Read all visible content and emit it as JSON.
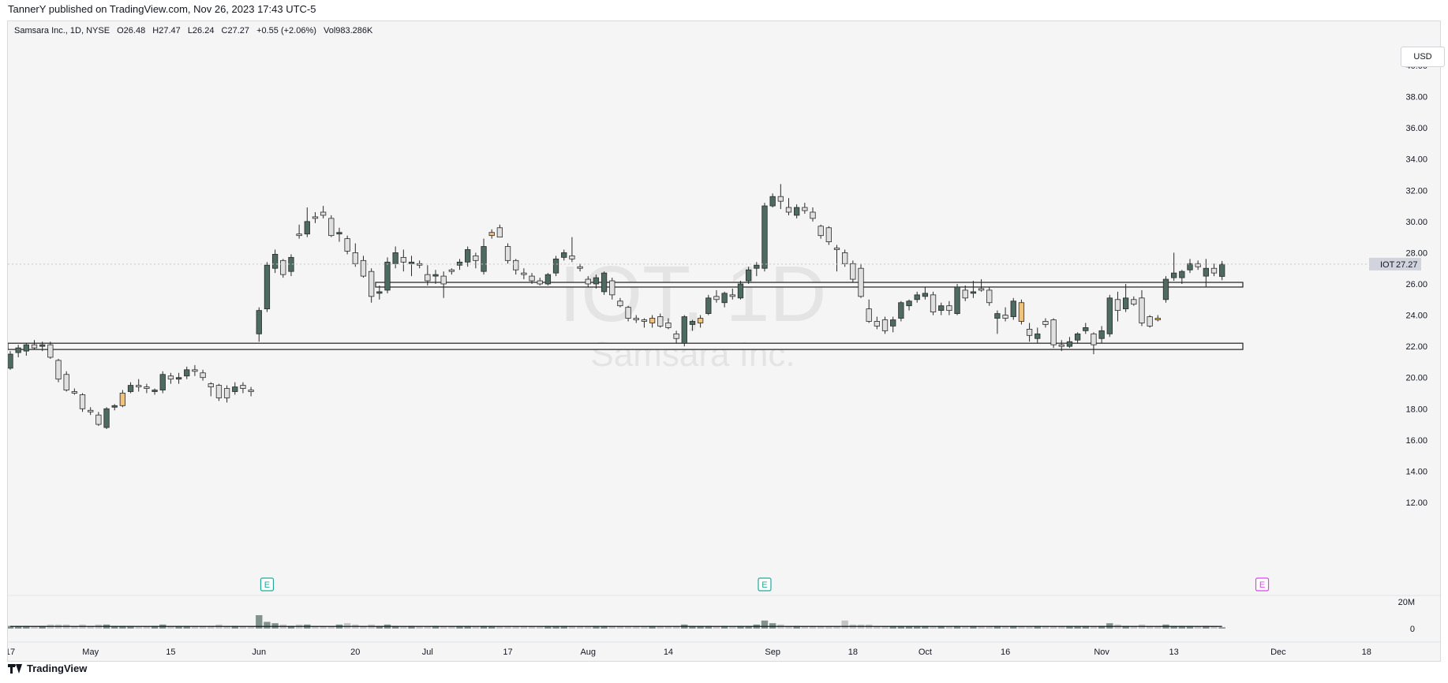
{
  "header": {
    "publisher": "TannerY published on TradingView.com, Nov 26, 2023 17:43 UTC-5"
  },
  "legend": {
    "symbol": "Samsara Inc., 1D, NYSE",
    "open": "O26.48",
    "high": "H27.47",
    "low": "L26.24",
    "close": "C27.27",
    "change": "+0.55 (+2.06%)",
    "volume": "Vol983.286K"
  },
  "watermark": {
    "ticker": "IOT, 1D",
    "name": "Samsara Inc."
  },
  "currency": "USD",
  "price_tag": {
    "symbol": "IOT",
    "value": "27.27"
  },
  "footer": {
    "brand": "TradingView"
  },
  "colors": {
    "up": "#4e6b62",
    "down": "#e0e0e0",
    "flagged": "#f0c27b",
    "outline": "#2a2a2a",
    "earnings": "#26a69a",
    "earnings_future": "#e040fb",
    "volume": "#8f9a97"
  },
  "chart_data": {
    "type": "candlestick",
    "y_ticks": [
      "40.00",
      "38.00",
      "36.00",
      "34.00",
      "32.00",
      "30.00",
      "28.00",
      "26.00",
      "24.00",
      "22.00",
      "20.00",
      "18.00",
      "16.00",
      "14.00",
      "12.00"
    ],
    "ylim": [
      12,
      42
    ],
    "x_tick_labels": [
      {
        "label": "17",
        "index": 0
      },
      {
        "label": "May",
        "index": 10
      },
      {
        "label": "15",
        "index": 20
      },
      {
        "label": "Jun",
        "index": 31
      },
      {
        "label": "20",
        "index": 43
      },
      {
        "label": "Jul",
        "index": 52
      },
      {
        "label": "17",
        "index": 62
      },
      {
        "label": "Aug",
        "index": 72
      },
      {
        "label": "14",
        "index": 82
      },
      {
        "label": "Sep",
        "index": 95
      },
      {
        "label": "18",
        "index": 105
      },
      {
        "label": "Oct",
        "index": 114
      },
      {
        "label": "16",
        "index": 124
      },
      {
        "label": "Nov",
        "index": 136
      },
      {
        "label": "13",
        "index": 145
      },
      {
        "label": "Dec",
        "index": 158
      },
      {
        "label": "18",
        "index": 169
      }
    ],
    "volume_ticks": [
      "20M",
      "0"
    ],
    "volume_max": 20,
    "horizontal_bands": [
      {
        "low": 25.8,
        "high": 26.1
      },
      {
        "low": 21.8,
        "high": 22.2
      }
    ],
    "earnings_markers": [
      {
        "index": 32,
        "label": "E",
        "future": false
      },
      {
        "index": 94,
        "label": "E",
        "future": false
      },
      {
        "index": 156,
        "label": "E",
        "future": true
      }
    ],
    "candles": [
      {
        "o": 20.6,
        "h": 21.7,
        "l": 20.5,
        "c": 21.5,
        "v": 2
      },
      {
        "o": 21.6,
        "h": 22.1,
        "l": 21.3,
        "c": 21.9,
        "v": 2
      },
      {
        "o": 21.7,
        "h": 22.2,
        "l": 21.4,
        "c": 22.1,
        "v": 2
      },
      {
        "o": 22.1,
        "h": 22.4,
        "l": 21.8,
        "c": 21.9,
        "v": 2
      },
      {
        "o": 22.0,
        "h": 22.3,
        "l": 21.7,
        "c": 22.1,
        "v": 2
      },
      {
        "o": 22.1,
        "h": 22.3,
        "l": 21.2,
        "c": 21.3,
        "v": 3
      },
      {
        "o": 21.1,
        "h": 21.2,
        "l": 19.7,
        "c": 19.9,
        "v": 3
      },
      {
        "o": 20.2,
        "h": 20.4,
        "l": 19.1,
        "c": 19.2,
        "v": 3
      },
      {
        "o": 19.1,
        "h": 19.3,
        "l": 18.9,
        "c": 19.0,
        "v": 2
      },
      {
        "o": 18.9,
        "h": 19.0,
        "l": 17.8,
        "c": 18.0,
        "v": 3
      },
      {
        "o": 17.9,
        "h": 18.1,
        "l": 17.6,
        "c": 17.8,
        "v": 2
      },
      {
        "o": 17.6,
        "h": 17.8,
        "l": 16.9,
        "c": 17.0,
        "v": 3
      },
      {
        "o": 16.8,
        "h": 18.1,
        "l": 16.7,
        "c": 18.0,
        "v": 3
      },
      {
        "o": 18.1,
        "h": 18.3,
        "l": 17.9,
        "c": 18.2,
        "v": 2
      },
      {
        "o": 18.2,
        "h": 19.2,
        "l": 18.1,
        "c": 19.0,
        "v": 2
      },
      {
        "o": 19.1,
        "h": 19.7,
        "l": 19.0,
        "c": 19.5,
        "v": 2
      },
      {
        "o": 19.5,
        "h": 19.9,
        "l": 19.1,
        "c": 19.4,
        "v": 2
      },
      {
        "o": 19.4,
        "h": 19.6,
        "l": 19.0,
        "c": 19.3,
        "v": 2
      },
      {
        "o": 19.1,
        "h": 19.3,
        "l": 18.9,
        "c": 19.2,
        "v": 2
      },
      {
        "o": 19.2,
        "h": 20.4,
        "l": 19.0,
        "c": 20.2,
        "v": 3
      },
      {
        "o": 20.1,
        "h": 20.3,
        "l": 19.6,
        "c": 19.9,
        "v": 2
      },
      {
        "o": 19.9,
        "h": 20.3,
        "l": 19.6,
        "c": 20.0,
        "v": 2
      },
      {
        "o": 20.1,
        "h": 20.7,
        "l": 19.9,
        "c": 20.5,
        "v": 2
      },
      {
        "o": 20.5,
        "h": 20.8,
        "l": 20.1,
        "c": 20.4,
        "v": 2
      },
      {
        "o": 20.3,
        "h": 20.5,
        "l": 19.8,
        "c": 20.0,
        "v": 2
      },
      {
        "o": 19.6,
        "h": 19.7,
        "l": 18.8,
        "c": 19.4,
        "v": 2
      },
      {
        "o": 19.5,
        "h": 19.6,
        "l": 18.5,
        "c": 18.7,
        "v": 3
      },
      {
        "o": 19.3,
        "h": 19.5,
        "l": 18.4,
        "c": 18.7,
        "v": 2
      },
      {
        "o": 19.1,
        "h": 19.7,
        "l": 18.9,
        "c": 19.4,
        "v": 2
      },
      {
        "o": 19.5,
        "h": 19.7,
        "l": 19.0,
        "c": 19.3,
        "v": 2
      },
      {
        "o": 19.2,
        "h": 19.4,
        "l": 18.8,
        "c": 19.1,
        "v": 2
      },
      {
        "o": 22.8,
        "h": 24.5,
        "l": 22.3,
        "c": 24.3,
        "v": 10
      },
      {
        "o": 24.4,
        "h": 27.4,
        "l": 24.2,
        "c": 27.2,
        "v": 5
      },
      {
        "o": 27.0,
        "h": 28.2,
        "l": 26.7,
        "c": 27.9,
        "v": 4
      },
      {
        "o": 27.5,
        "h": 27.6,
        "l": 26.4,
        "c": 26.6,
        "v": 3
      },
      {
        "o": 26.8,
        "h": 27.9,
        "l": 26.5,
        "c": 27.7,
        "v": 2
      },
      {
        "o": 29.2,
        "h": 29.8,
        "l": 28.9,
        "c": 29.1,
        "v": 3
      },
      {
        "o": 29.2,
        "h": 30.9,
        "l": 29.0,
        "c": 30.0,
        "v": 3
      },
      {
        "o": 30.3,
        "h": 30.6,
        "l": 29.9,
        "c": 30.2,
        "v": 2
      },
      {
        "o": 30.6,
        "h": 31.0,
        "l": 30.2,
        "c": 30.4,
        "v": 2
      },
      {
        "o": 30.2,
        "h": 30.4,
        "l": 29.0,
        "c": 29.1,
        "v": 2
      },
      {
        "o": 29.2,
        "h": 29.6,
        "l": 28.7,
        "c": 29.3,
        "v": 3
      },
      {
        "o": 28.9,
        "h": 29.1,
        "l": 27.9,
        "c": 28.1,
        "v": 4
      },
      {
        "o": 28.0,
        "h": 28.6,
        "l": 27.1,
        "c": 27.3,
        "v": 3
      },
      {
        "o": 27.5,
        "h": 27.8,
        "l": 26.4,
        "c": 26.5,
        "v": 2
      },
      {
        "o": 26.8,
        "h": 27.0,
        "l": 24.8,
        "c": 25.2,
        "v": 3
      },
      {
        "o": 25.4,
        "h": 25.9,
        "l": 25.0,
        "c": 25.5,
        "v": 2
      },
      {
        "o": 25.6,
        "h": 27.7,
        "l": 25.4,
        "c": 27.4,
        "v": 3
      },
      {
        "o": 27.3,
        "h": 28.4,
        "l": 27.0,
        "c": 28.0,
        "v": 2
      },
      {
        "o": 27.7,
        "h": 28.2,
        "l": 26.8,
        "c": 27.4,
        "v": 2
      },
      {
        "o": 27.3,
        "h": 27.8,
        "l": 26.5,
        "c": 27.4,
        "v": 2
      },
      {
        "o": 27.3,
        "h": 27.5,
        "l": 27.0,
        "c": 27.2,
        "v": 2
      },
      {
        "o": 26.6,
        "h": 27.2,
        "l": 25.9,
        "c": 26.2,
        "v": 2
      },
      {
        "o": 26.5,
        "h": 26.9,
        "l": 26.0,
        "c": 26.6,
        "v": 2
      },
      {
        "o": 26.5,
        "h": 26.8,
        "l": 25.1,
        "c": 26.0,
        "v": 2
      },
      {
        "o": 26.9,
        "h": 27.0,
        "l": 26.6,
        "c": 26.8,
        "v": 2
      },
      {
        "o": 27.2,
        "h": 27.6,
        "l": 26.9,
        "c": 27.4,
        "v": 2
      },
      {
        "o": 27.4,
        "h": 28.4,
        "l": 27.1,
        "c": 28.2,
        "v": 2
      },
      {
        "o": 27.8,
        "h": 28.0,
        "l": 27.0,
        "c": 27.5,
        "v": 2
      },
      {
        "o": 26.8,
        "h": 28.9,
        "l": 26.6,
        "c": 28.4,
        "v": 2
      },
      {
        "o": 29.1,
        "h": 29.5,
        "l": 28.9,
        "c": 29.3,
        "v": 2
      },
      {
        "o": 29.6,
        "h": 29.8,
        "l": 29.0,
        "c": 29.0,
        "v": 2
      },
      {
        "o": 28.4,
        "h": 28.6,
        "l": 27.3,
        "c": 27.5,
        "v": 2
      },
      {
        "o": 27.5,
        "h": 27.6,
        "l": 26.6,
        "c": 26.9,
        "v": 2
      },
      {
        "o": 26.7,
        "h": 27.0,
        "l": 26.3,
        "c": 26.6,
        "v": 2
      },
      {
        "o": 26.5,
        "h": 26.7,
        "l": 26.0,
        "c": 26.2,
        "v": 2
      },
      {
        "o": 26.2,
        "h": 26.4,
        "l": 25.9,
        "c": 26.0,
        "v": 2
      },
      {
        "o": 26.0,
        "h": 26.7,
        "l": 25.9,
        "c": 26.6,
        "v": 2
      },
      {
        "o": 26.7,
        "h": 27.8,
        "l": 26.5,
        "c": 27.6,
        "v": 2
      },
      {
        "o": 27.7,
        "h": 28.2,
        "l": 27.5,
        "c": 28.0,
        "v": 2
      },
      {
        "o": 27.8,
        "h": 29.0,
        "l": 27.4,
        "c": 27.6,
        "v": 2
      },
      {
        "o": 27.1,
        "h": 27.3,
        "l": 26.8,
        "c": 27.0,
        "v": 2
      },
      {
        "o": 26.3,
        "h": 26.5,
        "l": 25.8,
        "c": 26.0,
        "v": 2
      },
      {
        "o": 26.0,
        "h": 26.6,
        "l": 25.7,
        "c": 26.4,
        "v": 2
      },
      {
        "o": 25.5,
        "h": 26.8,
        "l": 25.3,
        "c": 26.7,
        "v": 2
      },
      {
        "o": 26.2,
        "h": 26.4,
        "l": 25.0,
        "c": 25.3,
        "v": 2
      },
      {
        "o": 24.9,
        "h": 25.1,
        "l": 24.5,
        "c": 24.6,
        "v": 2
      },
      {
        "o": 24.5,
        "h": 24.6,
        "l": 23.6,
        "c": 23.8,
        "v": 2
      },
      {
        "o": 23.8,
        "h": 24.0,
        "l": 23.5,
        "c": 23.7,
        "v": 2
      },
      {
        "o": 23.7,
        "h": 23.8,
        "l": 23.2,
        "c": 23.6,
        "v": 2
      },
      {
        "o": 23.5,
        "h": 24.0,
        "l": 23.2,
        "c": 23.8,
        "v": 2
      },
      {
        "o": 23.9,
        "h": 24.1,
        "l": 23.2,
        "c": 23.3,
        "v": 2
      },
      {
        "o": 23.5,
        "h": 23.8,
        "l": 23.1,
        "c": 23.2,
        "v": 2
      },
      {
        "o": 22.8,
        "h": 23.0,
        "l": 22.2,
        "c": 22.5,
        "v": 2
      },
      {
        "o": 22.2,
        "h": 24.0,
        "l": 22.0,
        "c": 23.9,
        "v": 3
      },
      {
        "o": 23.4,
        "h": 23.7,
        "l": 23.0,
        "c": 23.6,
        "v": 2
      },
      {
        "o": 23.5,
        "h": 24.0,
        "l": 23.2,
        "c": 23.8,
        "v": 2
      },
      {
        "o": 24.1,
        "h": 25.3,
        "l": 24.0,
        "c": 25.1,
        "v": 2
      },
      {
        "o": 25.2,
        "h": 25.6,
        "l": 24.8,
        "c": 25.0,
        "v": 2
      },
      {
        "o": 24.8,
        "h": 25.5,
        "l": 24.5,
        "c": 25.4,
        "v": 2
      },
      {
        "o": 25.3,
        "h": 25.7,
        "l": 25.0,
        "c": 25.2,
        "v": 2
      },
      {
        "o": 25.1,
        "h": 26.2,
        "l": 25.0,
        "c": 26.0,
        "v": 2
      },
      {
        "o": 26.2,
        "h": 27.1,
        "l": 26.0,
        "c": 26.9,
        "v": 2
      },
      {
        "o": 27.0,
        "h": 27.4,
        "l": 26.5,
        "c": 27.2,
        "v": 3
      },
      {
        "o": 27.0,
        "h": 31.2,
        "l": 26.8,
        "c": 31.0,
        "v": 6
      },
      {
        "o": 31.0,
        "h": 31.8,
        "l": 30.9,
        "c": 31.6,
        "v": 4
      },
      {
        "o": 31.6,
        "h": 32.4,
        "l": 30.8,
        "c": 31.3,
        "v": 3
      },
      {
        "o": 30.9,
        "h": 31.5,
        "l": 30.4,
        "c": 30.6,
        "v": 2
      },
      {
        "o": 30.4,
        "h": 31.1,
        "l": 30.2,
        "c": 30.9,
        "v": 2
      },
      {
        "o": 30.9,
        "h": 31.2,
        "l": 30.5,
        "c": 30.7,
        "v": 2
      },
      {
        "o": 30.6,
        "h": 30.9,
        "l": 30.0,
        "c": 30.2,
        "v": 2
      },
      {
        "o": 29.7,
        "h": 29.8,
        "l": 28.9,
        "c": 29.1,
        "v": 2
      },
      {
        "o": 29.6,
        "h": 29.7,
        "l": 28.5,
        "c": 28.7,
        "v": 2
      },
      {
        "o": 28.3,
        "h": 28.5,
        "l": 26.8,
        "c": 28.2,
        "v": 2
      },
      {
        "o": 28.0,
        "h": 28.2,
        "l": 27.1,
        "c": 27.3,
        "v": 6
      },
      {
        "o": 27.3,
        "h": 27.5,
        "l": 26.1,
        "c": 26.3,
        "v": 3
      },
      {
        "o": 27.0,
        "h": 27.3,
        "l": 25.1,
        "c": 25.2,
        "v": 3
      },
      {
        "o": 24.4,
        "h": 25.0,
        "l": 23.5,
        "c": 23.6,
        "v": 3
      },
      {
        "o": 23.6,
        "h": 23.9,
        "l": 23.1,
        "c": 23.3,
        "v": 2
      },
      {
        "o": 23.7,
        "h": 23.9,
        "l": 22.8,
        "c": 23.0,
        "v": 2
      },
      {
        "o": 23.3,
        "h": 23.9,
        "l": 22.9,
        "c": 23.7,
        "v": 2
      },
      {
        "o": 23.8,
        "h": 24.9,
        "l": 23.6,
        "c": 24.8,
        "v": 2
      },
      {
        "o": 24.6,
        "h": 25.0,
        "l": 24.3,
        "c": 24.9,
        "v": 2
      },
      {
        "o": 25.0,
        "h": 25.5,
        "l": 24.8,
        "c": 25.3,
        "v": 2
      },
      {
        "o": 25.2,
        "h": 25.8,
        "l": 25.0,
        "c": 25.4,
        "v": 2
      },
      {
        "o": 25.3,
        "h": 25.5,
        "l": 24.0,
        "c": 24.2,
        "v": 2
      },
      {
        "o": 24.3,
        "h": 24.8,
        "l": 24.0,
        "c": 24.6,
        "v": 2
      },
      {
        "o": 24.6,
        "h": 24.9,
        "l": 24.0,
        "c": 24.3,
        "v": 2
      },
      {
        "o": 24.1,
        "h": 26.0,
        "l": 24.0,
        "c": 25.8,
        "v": 2
      },
      {
        "o": 25.6,
        "h": 25.9,
        "l": 24.9,
        "c": 25.1,
        "v": 2
      },
      {
        "o": 25.4,
        "h": 26.2,
        "l": 25.1,
        "c": 25.5,
        "v": 2
      },
      {
        "o": 25.7,
        "h": 26.3,
        "l": 25.5,
        "c": 25.6,
        "v": 2
      },
      {
        "o": 25.6,
        "h": 25.8,
        "l": 24.6,
        "c": 24.8,
        "v": 2
      },
      {
        "o": 23.8,
        "h": 24.3,
        "l": 22.8,
        "c": 24.1,
        "v": 2
      },
      {
        "o": 24.0,
        "h": 24.5,
        "l": 23.6,
        "c": 23.8,
        "v": 2
      },
      {
        "o": 23.9,
        "h": 25.1,
        "l": 23.7,
        "c": 24.9,
        "v": 2
      },
      {
        "o": 24.8,
        "h": 25.0,
        "l": 23.4,
        "c": 23.6,
        "v": 2
      },
      {
        "o": 23.1,
        "h": 23.5,
        "l": 22.3,
        "c": 22.7,
        "v": 2
      },
      {
        "o": 22.5,
        "h": 23.2,
        "l": 22.2,
        "c": 22.8,
        "v": 2
      },
      {
        "o": 23.6,
        "h": 23.8,
        "l": 23.2,
        "c": 23.4,
        "v": 2
      },
      {
        "o": 23.7,
        "h": 23.8,
        "l": 21.9,
        "c": 22.1,
        "v": 2
      },
      {
        "o": 22.1,
        "h": 22.4,
        "l": 21.7,
        "c": 22.0,
        "v": 2
      },
      {
        "o": 22.0,
        "h": 22.6,
        "l": 21.9,
        "c": 22.3,
        "v": 2
      },
      {
        "o": 22.4,
        "h": 22.9,
        "l": 22.2,
        "c": 22.8,
        "v": 2
      },
      {
        "o": 23.0,
        "h": 23.5,
        "l": 22.8,
        "c": 23.2,
        "v": 2
      },
      {
        "o": 22.8,
        "h": 22.9,
        "l": 21.5,
        "c": 22.1,
        "v": 2
      },
      {
        "o": 22.5,
        "h": 23.3,
        "l": 22.2,
        "c": 23.0,
        "v": 2
      },
      {
        "o": 22.8,
        "h": 25.3,
        "l": 22.6,
        "c": 25.1,
        "v": 4
      },
      {
        "o": 25.0,
        "h": 25.5,
        "l": 23.6,
        "c": 24.3,
        "v": 3
      },
      {
        "o": 24.4,
        "h": 26.0,
        "l": 24.2,
        "c": 25.1,
        "v": 2
      },
      {
        "o": 25.0,
        "h": 25.2,
        "l": 24.6,
        "c": 24.7,
        "v": 2
      },
      {
        "o": 25.1,
        "h": 25.6,
        "l": 23.3,
        "c": 23.5,
        "v": 3
      },
      {
        "o": 23.9,
        "h": 24.0,
        "l": 23.2,
        "c": 23.3,
        "v": 2
      },
      {
        "o": 23.8,
        "h": 24.0,
        "l": 23.6,
        "c": 23.7,
        "v": 2
      },
      {
        "o": 25.0,
        "h": 26.5,
        "l": 24.8,
        "c": 26.3,
        "v": 3
      },
      {
        "o": 26.4,
        "h": 28.0,
        "l": 26.2,
        "c": 26.7,
        "v": 2
      },
      {
        "o": 26.4,
        "h": 26.9,
        "l": 26.0,
        "c": 26.8,
        "v": 2
      },
      {
        "o": 26.9,
        "h": 27.6,
        "l": 26.7,
        "c": 27.3,
        "v": 2
      },
      {
        "o": 27.3,
        "h": 27.5,
        "l": 26.9,
        "c": 27.1,
        "v": 2
      },
      {
        "o": 26.5,
        "h": 27.6,
        "l": 25.8,
        "c": 27.0,
        "v": 2
      },
      {
        "o": 27.0,
        "h": 27.3,
        "l": 26.5,
        "c": 26.7,
        "v": 2
      },
      {
        "o": 26.48,
        "h": 27.47,
        "l": 26.24,
        "c": 27.27,
        "v": 1
      }
    ],
    "flagged_indices": [
      14,
      60,
      80,
      86,
      126,
      143,
      157
    ],
    "last_close": 27.27
  }
}
